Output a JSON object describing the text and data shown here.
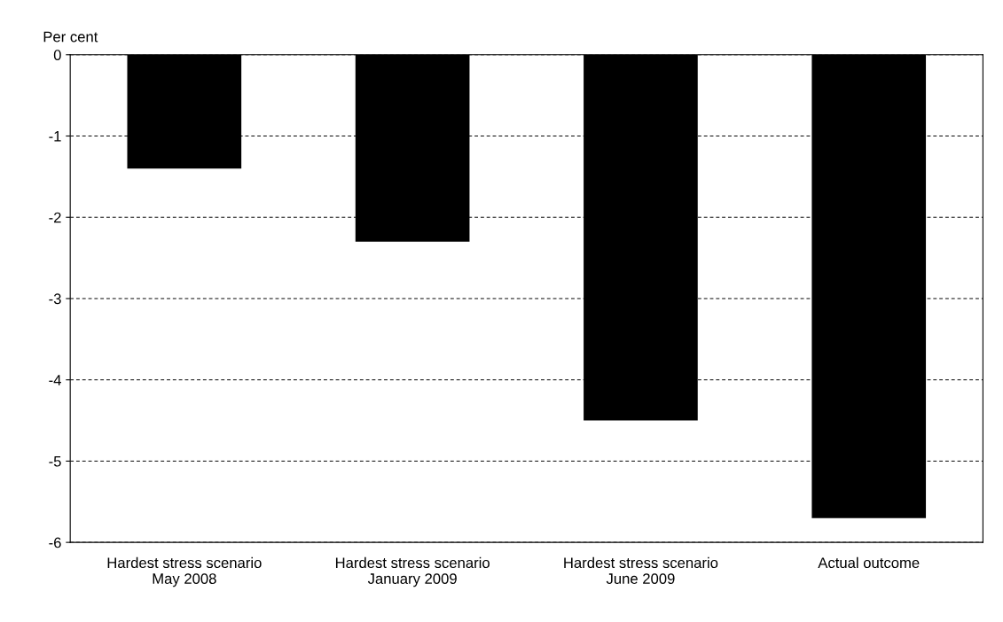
{
  "chart_data": {
    "type": "bar",
    "ylabel": "Per cent",
    "categories": [
      "Hardest stress scenario\nMay 2008",
      "Hardest stress scenario\nJanuary 2009",
      "Hardest stress scenario\nJune 2009",
      "Actual outcome"
    ],
    "values": [
      -1.4,
      -2.3,
      -4.5,
      -5.7
    ],
    "color": "#000000",
    "ylim": [
      -6,
      0
    ],
    "yticks": [
      -6,
      -5,
      -4,
      -3,
      -2,
      -1,
      0
    ],
    "grid": "y"
  }
}
